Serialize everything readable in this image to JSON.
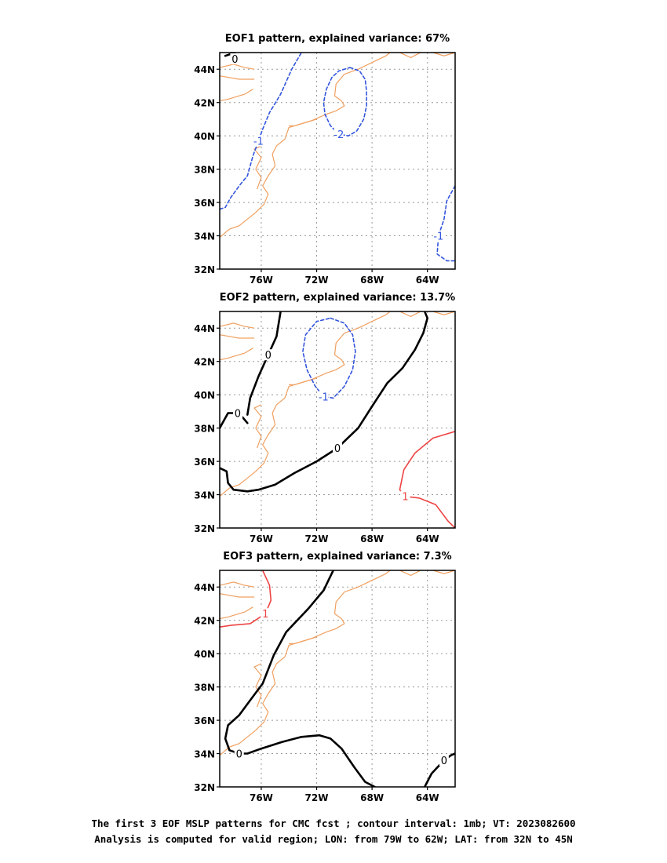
{
  "chart_data": [
    {
      "type": "contour_map",
      "title": "EOF1 pattern, explained variance: 67%",
      "x_ticks": [
        "76W",
        "72W",
        "68W",
        "64W"
      ],
      "y_ticks": [
        "32N",
        "34N",
        "36N",
        "38N",
        "40N",
        "42N",
        "44N"
      ],
      "xlim": [
        -79,
        -62
      ],
      "ylim": [
        32,
        45
      ],
      "grid": true,
      "contours": [
        {
          "label": "-2",
          "value": -2,
          "color": "#3355dd",
          "dashed": true,
          "bold": false,
          "points": [
            [
              -69.6,
              44.1
            ],
            [
              -68.9,
              43.9
            ],
            [
              -68.5,
              43.4
            ],
            [
              -68.4,
              42.7
            ],
            [
              -68.4,
              41.8
            ],
            [
              -68.6,
              41.0
            ],
            [
              -69.1,
              40.3
            ],
            [
              -69.7,
              40.0
            ],
            [
              -70.4,
              40.1
            ],
            [
              -71.0,
              40.6
            ],
            [
              -71.4,
              41.3
            ],
            [
              -71.5,
              42.0
            ],
            [
              -71.3,
              42.8
            ],
            [
              -70.9,
              43.5
            ],
            [
              -70.4,
              43.9
            ],
            [
              -69.6,
              44.1
            ]
          ]
        },
        {
          "label": "-1",
          "value": -1,
          "color": "#3355dd",
          "dashed": true,
          "bold": false,
          "points": [
            [
              -79,
              35.6
            ],
            [
              -78.6,
              35.7
            ],
            [
              -78.2,
              36.3
            ],
            [
              -77.5,
              37.1
            ],
            [
              -77.0,
              37.6
            ],
            [
              -76.6,
              38.8
            ],
            [
              -76.2,
              39.7
            ],
            [
              -75.9,
              40.4
            ],
            [
              -75.4,
              41.4
            ],
            [
              -74.6,
              42.5
            ],
            [
              -73.8,
              44.0
            ],
            [
              -73.1,
              45.0
            ]
          ]
        },
        {
          "label": "-1",
          "value": -1,
          "color": "#3355dd",
          "dashed": true,
          "bold": false,
          "points": [
            [
              -62,
              37.0
            ],
            [
              -62.6,
              36.1
            ],
            [
              -62.8,
              35.0
            ],
            [
              -63.2,
              34.0
            ],
            [
              -63.3,
              32.9
            ],
            [
              -62.6,
              32.5
            ],
            [
              -62,
              32.5
            ]
          ]
        },
        {
          "label": "0",
          "value": 0,
          "color": "#000000",
          "dashed": false,
          "bold": true,
          "points": [
            [
              -78.6,
              44.8
            ],
            [
              -77.9,
              45.0
            ]
          ]
        }
      ]
    },
    {
      "type": "contour_map",
      "title": "EOF2 pattern, explained variance: 13.7%",
      "x_ticks": [
        "76W",
        "72W",
        "68W",
        "64W"
      ],
      "y_ticks": [
        "32N",
        "34N",
        "36N",
        "38N",
        "40N",
        "42N",
        "44N"
      ],
      "xlim": [
        -79,
        -62
      ],
      "ylim": [
        32,
        45
      ],
      "grid": true,
      "contours": [
        {
          "label": "-1",
          "value": -1,
          "color": "#3355dd",
          "dashed": true,
          "bold": false,
          "points": [
            [
              -71.0,
              44.6
            ],
            [
              -70.0,
              44.3
            ],
            [
              -69.4,
              43.6
            ],
            [
              -69.2,
              42.6
            ],
            [
              -69.4,
              41.5
            ],
            [
              -70.0,
              40.5
            ],
            [
              -70.8,
              39.8
            ],
            [
              -71.5,
              39.9
            ],
            [
              -72.1,
              40.5
            ],
            [
              -72.7,
              41.5
            ],
            [
              -73.0,
              42.6
            ],
            [
              -72.8,
              43.6
            ],
            [
              -72.0,
              44.4
            ],
            [
              -71.0,
              44.6
            ]
          ]
        },
        {
          "label": "0",
          "value": 0,
          "color": "#000000",
          "dashed": false,
          "bold": true,
          "points": [
            [
              -79,
              38.0
            ],
            [
              -78.4,
              38.9
            ],
            [
              -77.7,
              38.9
            ],
            [
              -77.3,
              38.6
            ],
            [
              -77.0,
              38.3
            ]
          ]
        },
        {
          "label": "0",
          "value": 0,
          "color": "#000000",
          "dashed": false,
          "bold": true,
          "points": [
            [
              -77.0,
              38.8
            ],
            [
              -76.8,
              39.8
            ],
            [
              -76.2,
              41.1
            ],
            [
              -75.5,
              42.4
            ],
            [
              -74.9,
              43.5
            ],
            [
              -74.6,
              45.0
            ]
          ]
        },
        {
          "label": "0",
          "value": 0,
          "color": "#000000",
          "dashed": false,
          "bold": true,
          "points": [
            [
              -79,
              35.6
            ],
            [
              -78.5,
              35.4
            ],
            [
              -78.4,
              34.7
            ],
            [
              -78.0,
              34.3
            ],
            [
              -77.0,
              34.2
            ],
            [
              -76.2,
              34.3
            ],
            [
              -75.0,
              34.6
            ],
            [
              -73.6,
              35.3
            ],
            [
              -72.0,
              36.0
            ],
            [
              -70.5,
              36.8
            ],
            [
              -69.0,
              38.0
            ],
            [
              -68.0,
              39.3
            ],
            [
              -66.9,
              40.7
            ],
            [
              -65.8,
              41.6
            ],
            [
              -64.9,
              42.7
            ],
            [
              -64.3,
              43.7
            ],
            [
              -64.0,
              44.6
            ],
            [
              -64.2,
              45.0
            ]
          ]
        },
        {
          "label": "1",
          "value": 1,
          "color": "#ee4444",
          "dashed": false,
          "bold": false,
          "points": [
            [
              -62,
              37.8
            ],
            [
              -63.6,
              37.4
            ],
            [
              -64.9,
              36.5
            ],
            [
              -65.7,
              35.5
            ],
            [
              -66.0,
              34.3
            ],
            [
              -65.6,
              33.9
            ],
            [
              -64.6,
              33.8
            ],
            [
              -63.4,
              33.4
            ],
            [
              -62.5,
              32.4
            ],
            [
              -62,
              32.0
            ]
          ]
        }
      ]
    },
    {
      "type": "contour_map",
      "title": "EOF3 pattern, explained variance: 7.3%",
      "x_ticks": [
        "76W",
        "72W",
        "68W",
        "64W"
      ],
      "y_ticks": [
        "32N",
        "34N",
        "36N",
        "38N",
        "40N",
        "42N",
        "44N"
      ],
      "xlim": [
        -79,
        -62
      ],
      "ylim": [
        32,
        45
      ],
      "grid": true,
      "contours": [
        {
          "label": "1",
          "value": 1,
          "color": "#ee4444",
          "dashed": false,
          "bold": false,
          "points": [
            [
              -79,
              41.6
            ],
            [
              -78.2,
              41.7
            ],
            [
              -76.8,
              41.8
            ],
            [
              -75.7,
              42.4
            ],
            [
              -75.3,
              43.2
            ],
            [
              -75.4,
              44.1
            ],
            [
              -75.9,
              45.0
            ]
          ]
        },
        {
          "label": "0",
          "value": 0,
          "color": "#000000",
          "dashed": false,
          "bold": true,
          "points": [
            [
              -70.8,
              45.0
            ],
            [
              -71.5,
              43.8
            ],
            [
              -72.6,
              42.7
            ],
            [
              -74.2,
              41.3
            ],
            [
              -75.1,
              39.9
            ],
            [
              -75.9,
              38.2
            ],
            [
              -76.8,
              37.2
            ],
            [
              -77.6,
              36.3
            ],
            [
              -78.4,
              35.7
            ],
            [
              -78.6,
              34.9
            ],
            [
              -78.3,
              34.2
            ],
            [
              -77.6,
              34.0
            ],
            [
              -77.0,
              34.0
            ],
            [
              -76.0,
              34.3
            ],
            [
              -74.5,
              34.7
            ],
            [
              -73.1,
              35.0
            ],
            [
              -71.8,
              35.1
            ],
            [
              -71.0,
              34.9
            ],
            [
              -70.2,
              34.3
            ],
            [
              -69.3,
              33.2
            ],
            [
              -68.5,
              32.3
            ],
            [
              -67.8,
              32.0
            ]
          ]
        },
        {
          "label": "0",
          "value": 0,
          "color": "#000000",
          "dashed": false,
          "bold": true,
          "points": [
            [
              -64.2,
              32.0
            ],
            [
              -63.7,
              32.8
            ],
            [
              -62.8,
              33.6
            ],
            [
              -62.3,
              33.9
            ],
            [
              -62,
              34.0
            ]
          ]
        }
      ]
    }
  ],
  "coastline": [
    [
      [
        -79,
        44.1
      ],
      [
        -78.0,
        44.3
      ],
      [
        -77.2,
        44.1
      ],
      [
        -76.5,
        44.0
      ]
    ],
    [
      [
        -79,
        43.6
      ],
      [
        -77.6,
        43.4
      ],
      [
        -76.5,
        43.4
      ]
    ],
    [
      [
        -79,
        42.1
      ],
      [
        -78.4,
        42.2
      ],
      [
        -77.2,
        42.5
      ],
      [
        -76.6,
        42.8
      ]
    ],
    [
      [
        -79,
        33.9
      ],
      [
        -78.3,
        34.4
      ],
      [
        -77.6,
        34.6
      ],
      [
        -77.0,
        35.0
      ],
      [
        -76.4,
        35.4
      ],
      [
        -75.8,
        35.9
      ],
      [
        -75.5,
        36.5
      ],
      [
        -75.9,
        37.0
      ],
      [
        -75.5,
        37.6
      ],
      [
        -75.0,
        38.2
      ],
      [
        -75.2,
        38.9
      ],
      [
        -74.9,
        39.4
      ],
      [
        -74.3,
        39.8
      ],
      [
        -74.0,
        40.5
      ],
      [
        -73.2,
        40.7
      ],
      [
        -72.4,
        40.9
      ],
      [
        -71.3,
        41.3
      ],
      [
        -70.6,
        41.5
      ],
      [
        -70.0,
        41.8
      ],
      [
        -70.2,
        42.1
      ],
      [
        -70.7,
        42.4
      ],
      [
        -70.6,
        43.1
      ],
      [
        -70.0,
        43.7
      ],
      [
        -69.0,
        44.0
      ],
      [
        -68.0,
        44.4
      ],
      [
        -67.0,
        44.8
      ],
      [
        -66.7,
        45.0
      ]
    ],
    [
      [
        -76.3,
        36.8
      ],
      [
        -76.0,
        37.5
      ],
      [
        -76.4,
        38.0
      ],
      [
        -76.0,
        38.7
      ],
      [
        -76.5,
        39.2
      ],
      [
        -76.0,
        39.4
      ]
    ],
    [
      [
        -72.0,
        41.0
      ],
      [
        -73.6,
        40.6
      ],
      [
        -74.0,
        40.6
      ]
    ],
    [
      [
        -66.0,
        45.0
      ],
      [
        -65.2,
        44.7
      ],
      [
        -64.5,
        45.0
      ]
    ],
    [
      [
        -63.6,
        45.0
      ],
      [
        -62.8,
        44.8
      ],
      [
        -62,
        45.0
      ]
    ]
  ],
  "footer": {
    "line1": "The first 3 EOF MSLP patterns for CMC fcst ; contour interval: 1mb; VT: 2023082600",
    "line2": "Analysis is computed for valid region; LON: from 79W to 62W; LAT: from 32N to 45N"
  }
}
